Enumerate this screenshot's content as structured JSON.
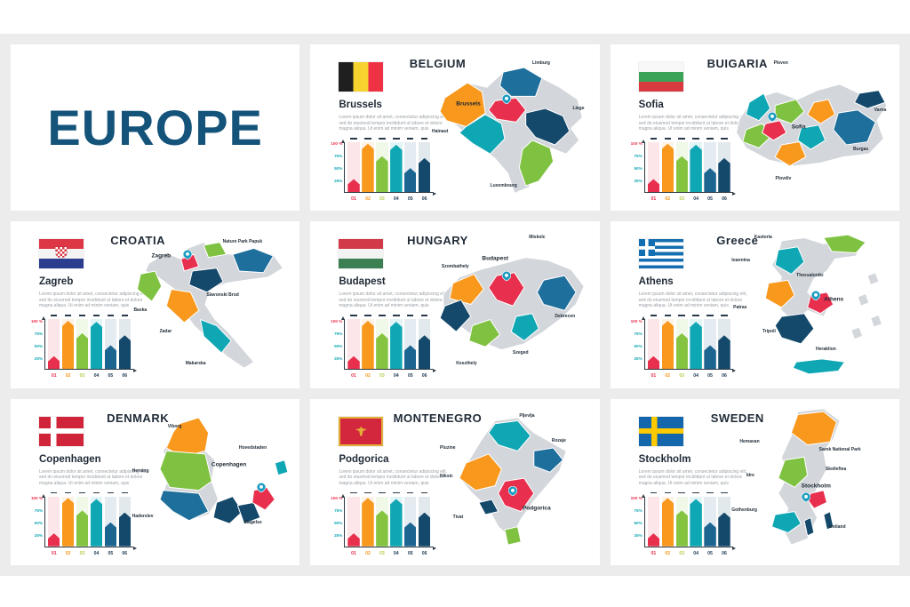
{
  "page": {
    "title": "EUROPE",
    "background": "#ececec",
    "accent_navy": "#14537a"
  },
  "shared": {
    "lorem": "Lorem ipsum dolor sit amet, consectetur adipiscing elit, sed do eiusmod tempor incididunt ut labore et dolore magna aliqua. Ut enim ad minim veniam, quis"
  },
  "chart_data": {
    "type": "bar",
    "categories": [
      "01",
      "02",
      "03",
      "04",
      "05",
      "06"
    ],
    "values": [
      26,
      97,
      72,
      95,
      48,
      68
    ],
    "ylim": [
      0,
      100
    ],
    "y_ticks": [
      "100 %",
      "75%",
      "50%",
      "25%"
    ],
    "y_tick_pos": [
      92,
      67,
      42,
      17
    ],
    "colors": [
      "#e8304e",
      "#f8981d",
      "#85c440",
      "#10a7b5",
      "#1d6591",
      "#14496b"
    ],
    "x_label_colors": [
      "#e8304e",
      "#f8981d",
      "#b8cc4d",
      "#1e3a52",
      "#1e3a52",
      "#1e3a52"
    ],
    "y_tick_colors": [
      "#e8304e",
      "#10a7b5",
      "#10a7b5",
      "#10a7b5"
    ]
  },
  "panels": [
    {
      "title": "BELGIUM",
      "capital": "Brussels",
      "regions": [
        "Limburg",
        "Liege",
        "Hainaut",
        "Luxembourg"
      ]
    },
    {
      "title": "BUIGARIA",
      "capital": "Sofia",
      "regions": [
        "Pleven",
        "Varna",
        "Burgas",
        "Plovdiv"
      ]
    },
    {
      "title": "CROATIA",
      "capital": "Zagreb",
      "regions": [
        "Nature Park Papuk",
        "Slavonski Brod",
        "Baska",
        "Zadar",
        "Makarska"
      ]
    },
    {
      "title": "HUNGARY",
      "capital": "Budapest",
      "regions": [
        "Miskolc",
        "Szombathely",
        "Debrecen",
        "Szeged",
        "Keszthely"
      ]
    },
    {
      "title": "Greece",
      "capital": "Athens",
      "regions": [
        "Kastoria",
        "Ioannina",
        "Thessaloniki",
        "Patras",
        "Tripoli",
        "Heraklion"
      ]
    },
    {
      "title": "DENMARK",
      "capital": "Copenhagen",
      "regions": [
        "Viborg",
        "Hovedstaden",
        "Herning",
        "Haderslev",
        "Slagelse"
      ]
    },
    {
      "title": "MONTENEGRO",
      "capital": "Podgorica",
      "regions": [
        "Pljevlja",
        "Rozaje",
        "Pluzine",
        "Niksic",
        "Tivat"
      ]
    },
    {
      "title": "SWEDEN",
      "capital": "Stockholm",
      "regions": [
        "Hemavan",
        "Sarek National Park",
        "Skelleftea",
        "Idre",
        "Gothenburg",
        "Gotland"
      ]
    }
  ]
}
